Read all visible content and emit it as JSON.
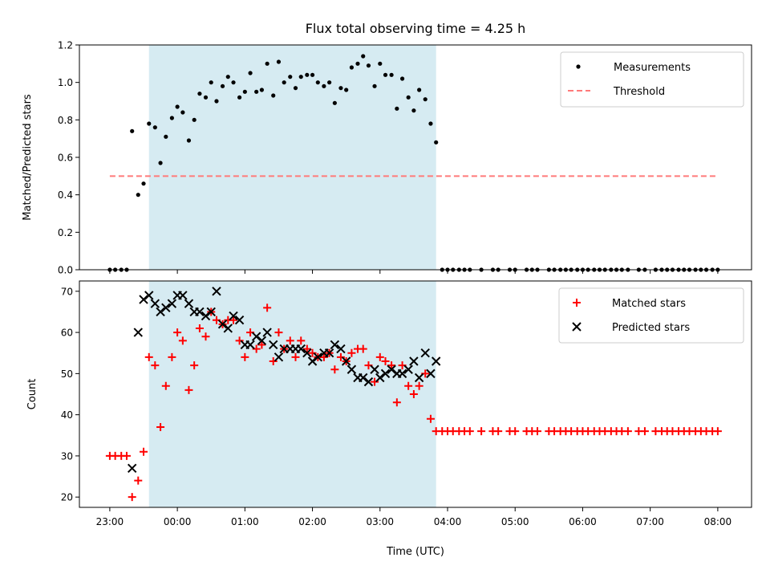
{
  "colors": {
    "measurement": "#000000",
    "threshold": "#ff7a7a",
    "matched": "#ff0000",
    "predicted": "#000000",
    "observing_window": "#add8e6"
  },
  "chart_data": [
    {
      "type": "scatter",
      "title": "Flux total observing time = 4.25 h",
      "ylabel": "Matched/Predicted stars",
      "xlabel": "",
      "xlim": [
        -0.45,
        9.5
      ],
      "ylim": [
        0,
        1.2
      ],
      "x_ticks": [
        0,
        1,
        2,
        3,
        4,
        5,
        6,
        7,
        8,
        9
      ],
      "x_tick_labels": [
        "23:00",
        "00:00",
        "01:00",
        "02:00",
        "03:00",
        "04:00",
        "05:00",
        "06:00",
        "07:00",
        "08:00"
      ],
      "show_x_tick_labels": false,
      "y_ticks": [
        0,
        0.2,
        0.4,
        0.6,
        0.8,
        1.0,
        1.2
      ],
      "y_tick_labels": [
        "0.0",
        "0.2",
        "0.4",
        "0.6",
        "0.8",
        "1.0",
        "1.2"
      ],
      "grid": false,
      "legend": "top-right",
      "shaded_region": [
        0.58,
        4.83
      ],
      "series": [
        {
          "name": "Measurements",
          "kind": "point",
          "x": [
            0.0,
            0.08,
            0.17,
            0.25,
            0.33,
            0.42,
            0.5,
            0.58,
            0.67,
            0.75,
            0.83,
            0.92,
            1.0,
            1.08,
            1.17,
            1.25,
            1.33,
            1.42,
            1.5,
            1.58,
            1.67,
            1.75,
            1.83,
            1.92,
            2.0,
            2.08,
            2.17,
            2.25,
            2.33,
            2.42,
            2.5,
            2.58,
            2.67,
            2.75,
            2.83,
            2.92,
            3.0,
            3.08,
            3.17,
            3.25,
            3.33,
            3.42,
            3.5,
            3.58,
            3.67,
            3.75,
            3.83,
            3.92,
            4.0,
            4.08,
            4.17,
            4.25,
            4.33,
            4.42,
            4.5,
            4.58,
            4.67,
            4.75,
            4.83,
            4.92,
            5.0,
            5.08,
            5.17,
            5.25,
            5.33,
            5.5,
            5.67,
            5.75,
            5.92,
            6.0,
            6.17,
            6.25,
            6.33,
            6.5,
            6.58,
            6.67,
            6.75,
            6.83,
            6.92,
            7.0,
            7.08,
            7.17,
            7.25,
            7.33,
            7.42,
            7.5,
            7.58,
            7.67,
            7.83,
            7.92,
            8.08,
            8.17,
            8.25,
            8.33,
            8.42,
            8.5,
            8.58,
            8.67,
            8.75,
            8.83,
            8.92,
            9.0
          ],
          "y": [
            0,
            0,
            0,
            0,
            0.74,
            0.4,
            0.46,
            0.78,
            0.76,
            0.57,
            0.71,
            0.81,
            0.87,
            0.84,
            0.69,
            0.8,
            0.94,
            0.92,
            1.0,
            0.9,
            0.98,
            1.03,
            1.0,
            0.92,
            0.95,
            1.05,
            0.95,
            0.96,
            1.1,
            0.93,
            1.11,
            1.0,
            1.03,
            0.97,
            1.03,
            1.04,
            1.04,
            1.0,
            0.98,
            1.0,
            0.89,
            0.97,
            0.96,
            1.08,
            1.1,
            1.14,
            1.09,
            0.98,
            1.1,
            1.04,
            1.04,
            0.86,
            1.02,
            0.92,
            0.85,
            0.96,
            0.91,
            0.78,
            0.68,
            0,
            0,
            0,
            0,
            0,
            0,
            0,
            0,
            0,
            0,
            0,
            0,
            0,
            0,
            0,
            0,
            0,
            0,
            0,
            0,
            0,
            0,
            0,
            0,
            0,
            0,
            0,
            0,
            0,
            0,
            0,
            0,
            0,
            0,
            0,
            0,
            0,
            0,
            0,
            0,
            0,
            0,
            0
          ]
        },
        {
          "name": "Threshold",
          "kind": "dashed-line",
          "x": [
            0,
            9
          ],
          "y": [
            0.5,
            0.5
          ]
        }
      ]
    },
    {
      "type": "scatter",
      "title": "",
      "ylabel": "Count",
      "xlabel": "Time (UTC)",
      "xlim": [
        -0.45,
        9.5
      ],
      "ylim": [
        17.5,
        72.5
      ],
      "x_ticks": [
        0,
        1,
        2,
        3,
        4,
        5,
        6,
        7,
        8,
        9
      ],
      "x_tick_labels": [
        "23:00",
        "00:00",
        "01:00",
        "02:00",
        "03:00",
        "04:00",
        "05:00",
        "06:00",
        "07:00",
        "08:00"
      ],
      "show_x_tick_labels": true,
      "y_ticks": [
        20,
        30,
        40,
        50,
        60,
        70
      ],
      "y_tick_labels": [
        "20",
        "30",
        "40",
        "50",
        "60",
        "70"
      ],
      "grid": false,
      "legend": "top-right",
      "shaded_region": [
        0.58,
        4.83
      ],
      "series": [
        {
          "name": "Matched stars",
          "kind": "plus",
          "x": [
            0.0,
            0.08,
            0.17,
            0.25,
            0.33,
            0.42,
            0.5,
            0.58,
            0.67,
            0.75,
            0.83,
            0.92,
            1.0,
            1.08,
            1.17,
            1.25,
            1.33,
            1.42,
            1.5,
            1.58,
            1.67,
            1.75,
            1.83,
            1.92,
            2.0,
            2.08,
            2.17,
            2.25,
            2.33,
            2.42,
            2.5,
            2.58,
            2.67,
            2.75,
            2.83,
            2.92,
            3.0,
            3.08,
            3.17,
            3.25,
            3.33,
            3.42,
            3.5,
            3.58,
            3.67,
            3.75,
            3.83,
            3.92,
            4.0,
            4.08,
            4.17,
            4.25,
            4.33,
            4.42,
            4.5,
            4.58,
            4.67,
            4.75,
            4.83,
            4.92,
            5.0,
            5.08,
            5.17,
            5.25,
            5.33,
            5.5,
            5.67,
            5.75,
            5.92,
            6.0,
            6.17,
            6.25,
            6.33,
            6.5,
            6.58,
            6.67,
            6.75,
            6.83,
            6.92,
            7.0,
            7.08,
            7.17,
            7.25,
            7.33,
            7.42,
            7.5,
            7.58,
            7.67,
            7.83,
            7.92,
            8.08,
            8.17,
            8.25,
            8.33,
            8.42,
            8.5,
            8.58,
            8.67,
            8.75,
            8.83,
            8.92,
            9.0
          ],
          "y": [
            30,
            30,
            30,
            30,
            20,
            24,
            31,
            54,
            52,
            37,
            47,
            54,
            60,
            58,
            46,
            52,
            61,
            59,
            65,
            63,
            62,
            63,
            63,
            58,
            54,
            60,
            56,
            57,
            66,
            53,
            60,
            56,
            58,
            54,
            58,
            56,
            55,
            54,
            54,
            55,
            51,
            54,
            53,
            55,
            56,
            56,
            52,
            48,
            54,
            53,
            52,
            43,
            52,
            47,
            45,
            47,
            50,
            39,
            36,
            36,
            36,
            36,
            36,
            36,
            36,
            36,
            36,
            36,
            36,
            36,
            36,
            36,
            36,
            36,
            36,
            36,
            36,
            36,
            36,
            36,
            36,
            36,
            36,
            36,
            36,
            36,
            36,
            36,
            36,
            36,
            36,
            36,
            36,
            36,
            36,
            36,
            36,
            36,
            36,
            36,
            36,
            36
          ]
        },
        {
          "name": "Predicted stars",
          "kind": "cross",
          "x": [
            0.33,
            0.42,
            0.5,
            0.58,
            0.67,
            0.75,
            0.83,
            0.92,
            1.0,
            1.08,
            1.17,
            1.25,
            1.33,
            1.42,
            1.5,
            1.58,
            1.67,
            1.75,
            1.83,
            1.92,
            2.0,
            2.08,
            2.17,
            2.25,
            2.33,
            2.42,
            2.5,
            2.58,
            2.67,
            2.75,
            2.83,
            2.92,
            3.0,
            3.08,
            3.17,
            3.25,
            3.33,
            3.42,
            3.5,
            3.58,
            3.67,
            3.75,
            3.83,
            3.92,
            4.0,
            4.08,
            4.17,
            4.25,
            4.33,
            4.42,
            4.5,
            4.58,
            4.67,
            4.75,
            4.83
          ],
          "y": [
            27,
            60,
            68,
            69,
            67,
            65,
            66,
            67,
            69,
            69,
            67,
            65,
            65,
            64,
            65,
            70,
            62,
            61,
            64,
            63,
            57,
            57,
            59,
            58,
            60,
            57,
            54,
            56,
            56,
            56,
            56,
            55,
            53,
            54,
            55,
            55,
            57,
            56,
            53,
            51,
            49,
            49,
            48,
            51,
            49,
            50,
            51,
            50,
            50,
            51,
            53,
            49,
            55,
            50,
            53
          ]
        }
      ]
    }
  ]
}
